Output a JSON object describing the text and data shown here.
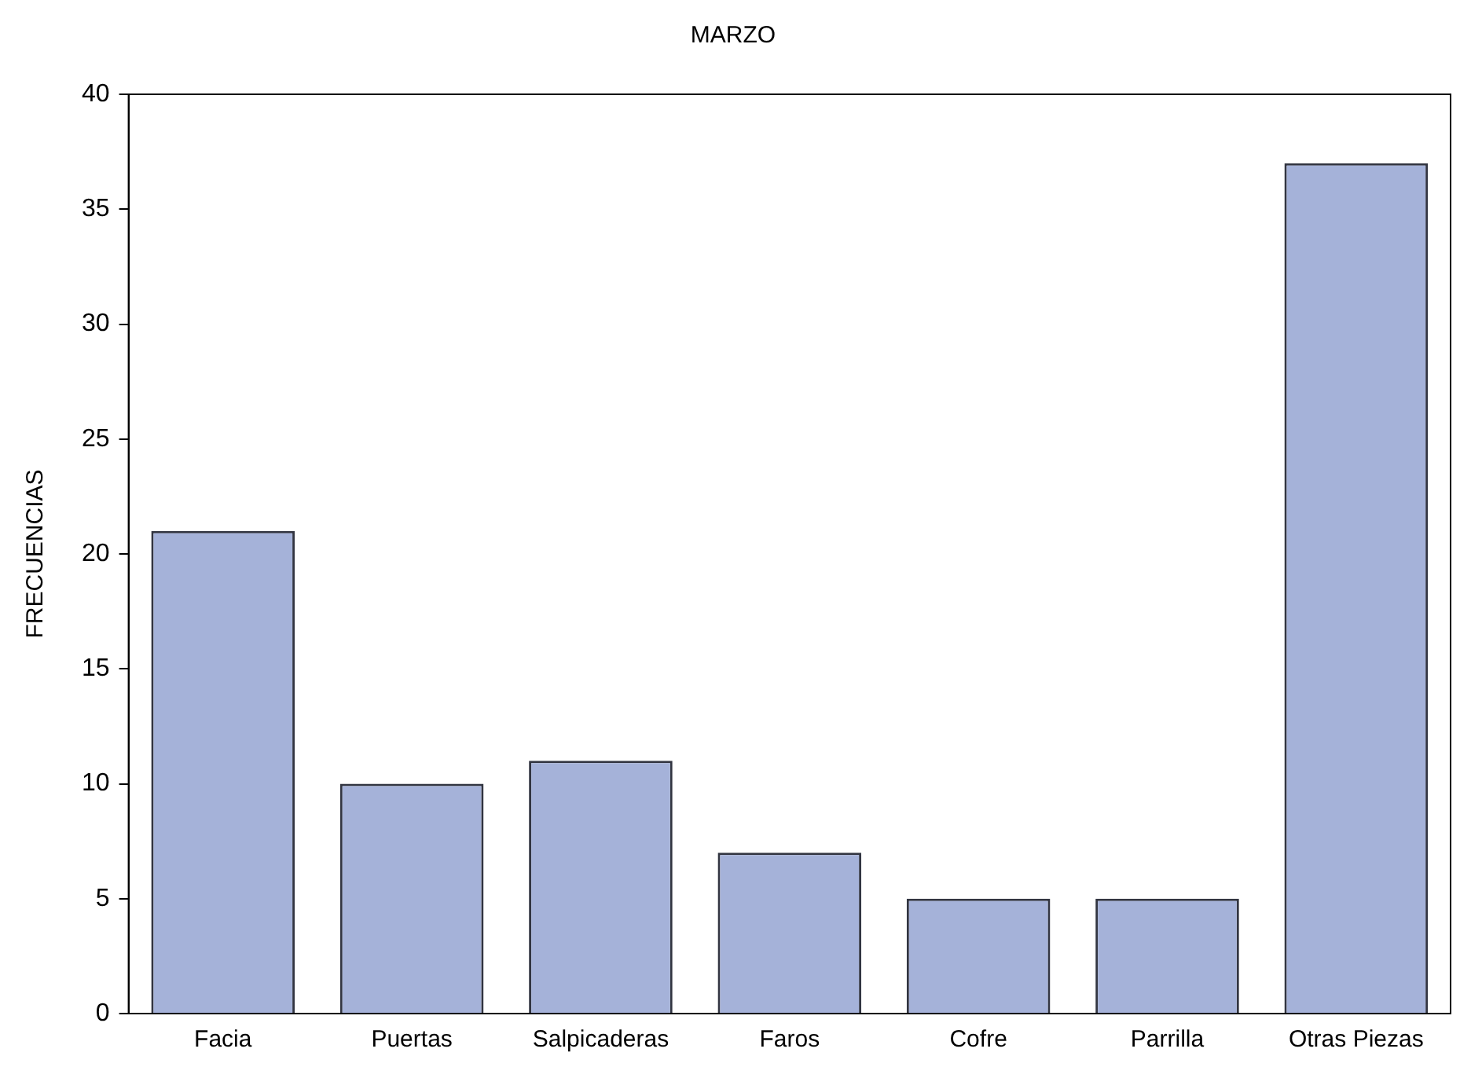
{
  "chart_data": {
    "type": "bar",
    "title": "MARZO",
    "ylabel": "FRECUENCIAS",
    "categories": [
      "Facia",
      "Puertas",
      "Salpicaderas",
      "Faros",
      "Cofre",
      "Parrilla",
      "Otras Piezas"
    ],
    "values": [
      21,
      10,
      11,
      7,
      5,
      5,
      37
    ],
    "color": "#a5b2d9",
    "ylim": [
      0,
      40
    ],
    "yticks": [
      0,
      5,
      10,
      15,
      20,
      25,
      30,
      35,
      40
    ],
    "grid": false,
    "legend": false
  }
}
